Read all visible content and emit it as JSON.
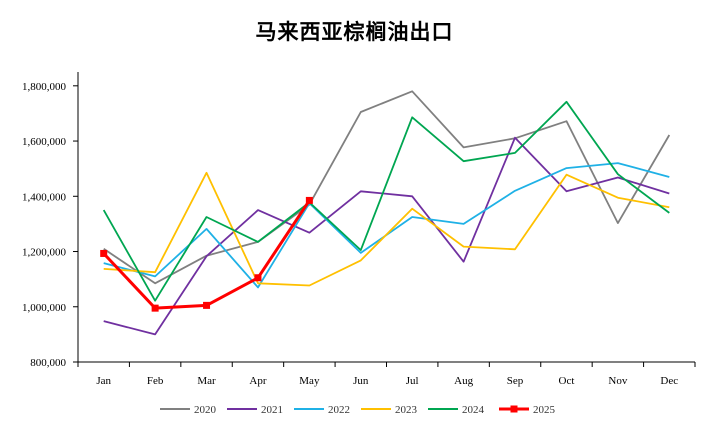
{
  "chart_data": {
    "type": "line",
    "title": "马来西亚棕榈油出口",
    "xlabel": "",
    "ylabel": "",
    "categories": [
      "Jan",
      "Feb",
      "Mar",
      "Apr",
      "May",
      "Jun",
      "Jul",
      "Aug",
      "Sep",
      "Oct",
      "Nov",
      "Dec"
    ],
    "ylim": [
      800000,
      1850000
    ],
    "yticks": [
      800000,
      1000000,
      1200000,
      1400000,
      1600000,
      1800000
    ],
    "ytick_labels": [
      "800,000",
      "1,000,000",
      "1,200,000",
      "1,400,000",
      "1,600,000",
      "1,800,000"
    ],
    "grid": false,
    "legend_position": "bottom",
    "series": [
      {
        "name": "2020",
        "color": "#808080",
        "values": [
          1210000,
          1085000,
          1185000,
          1235000,
          1370000,
          1705000,
          1780000,
          1577000,
          1610000,
          1672000,
          1303000,
          1622000
        ]
      },
      {
        "name": "2021",
        "color": "#7030a0",
        "values": [
          948000,
          900000,
          1183000,
          1350000,
          1268000,
          1418000,
          1400000,
          1163000,
          1612000,
          1418000,
          1468000,
          1410000
        ]
      },
      {
        "name": "2022",
        "color": "#1fb1e6",
        "values": [
          1158000,
          1110000,
          1282000,
          1070000,
          1375000,
          1195000,
          1325000,
          1300000,
          1420000,
          1502000,
          1520000,
          1470000
        ]
      },
      {
        "name": "2023",
        "color": "#ffc000",
        "values": [
          1137000,
          1125000,
          1485000,
          1085000,
          1077000,
          1168000,
          1355000,
          1218000,
          1208000,
          1478000,
          1395000,
          1360000
        ]
      },
      {
        "name": "2024",
        "color": "#00a651",
        "values": [
          1350000,
          1022000,
          1325000,
          1235000,
          1378000,
          1205000,
          1686000,
          1527000,
          1557000,
          1742000,
          1480000,
          1340000
        ]
      },
      {
        "name": "2025",
        "color": "#ff0000",
        "marker": "square",
        "values": [
          1193000,
          995000,
          1005000,
          1105000,
          1385000,
          null,
          null,
          null,
          null,
          null,
          null,
          null
        ]
      }
    ]
  }
}
